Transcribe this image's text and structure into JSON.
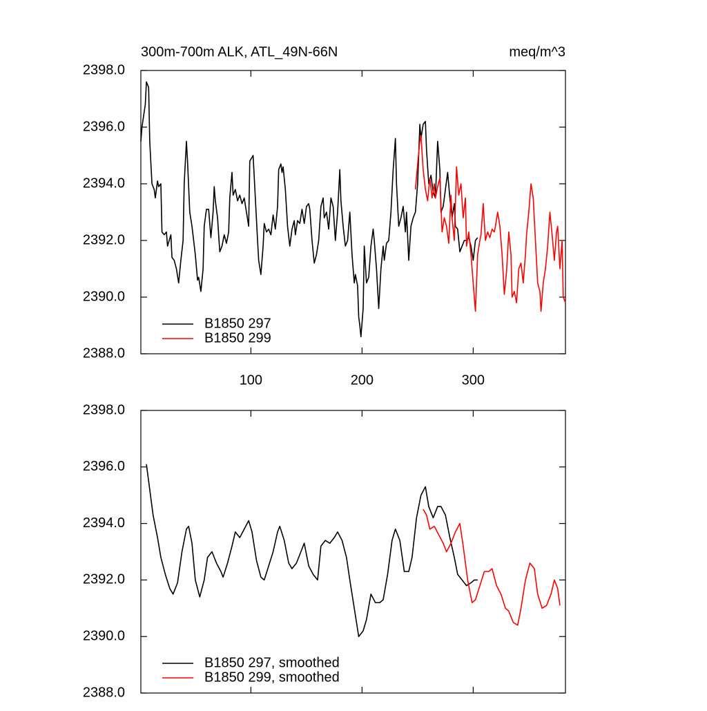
{
  "chart_data": [
    {
      "type": "line",
      "title": "300m-700m ALK, ATL_49N-66N",
      "units": "meq/m^3",
      "xlim": [
        1,
        383
      ],
      "xticks": [
        100,
        200,
        300
      ],
      "show_xtick_labels": true,
      "ylim": [
        2388,
        2398
      ],
      "yticks": [
        {
          "value": 2388,
          "label": "2388.0"
        },
        {
          "value": 2390,
          "label": "2390.0"
        },
        {
          "value": 2392,
          "label": "2392.0"
        },
        {
          "value": 2394,
          "label": "2394.0"
        },
        {
          "value": 2396,
          "label": "2396.0"
        },
        {
          "value": 2398,
          "label": "2398.0"
        }
      ],
      "legend": "lower left",
      "series": [
        {
          "name": "B1850 297",
          "color": "#000000",
          "x": [
            1,
            2,
            5,
            6,
            8,
            9,
            11,
            13,
            14,
            16,
            17,
            19,
            20,
            22,
            24,
            25,
            28,
            29,
            31,
            33,
            35,
            37,
            39,
            40,
            42,
            43,
            45,
            47,
            50,
            52,
            53,
            55,
            57,
            58,
            60,
            62,
            64,
            66,
            67,
            68,
            70,
            72,
            74,
            76,
            78,
            80,
            81,
            83,
            84,
            86,
            88,
            90,
            92,
            94,
            96,
            98,
            99,
            102,
            104,
            106,
            107,
            109,
            111,
            112,
            114,
            116,
            118,
            120,
            122,
            124,
            125,
            127,
            128,
            129,
            131,
            133,
            135,
            137,
            139,
            140,
            142,
            144,
            146,
            148,
            150,
            152,
            153,
            155,
            157,
            159,
            161,
            163,
            165,
            166,
            168,
            170,
            172,
            174,
            176,
            178,
            180,
            181,
            183,
            185,
            187,
            189,
            191,
            193,
            194,
            196,
            197,
            198,
            199,
            201,
            202,
            204,
            206,
            208,
            210,
            211,
            213,
            215,
            217,
            219,
            220,
            222,
            224,
            226,
            228,
            230,
            231,
            233,
            235,
            237,
            239,
            240,
            242,
            244,
            246,
            248,
            250,
            252,
            253,
            255,
            257,
            258,
            260,
            262,
            264,
            266,
            268,
            270,
            271,
            273,
            275,
            277,
            279,
            281,
            283,
            284,
            286,
            288,
            290,
            292,
            294,
            296,
            298,
            300,
            302,
            304
          ],
          "values": [
            2395.5,
            2396.0,
            2396.8,
            2397.6,
            2397.4,
            2395.5,
            2394.0,
            2393.8,
            2393.5,
            2394.1,
            2393.9,
            2394.0,
            2392.3,
            2392.2,
            2392.3,
            2391.8,
            2392.2,
            2391.4,
            2391.3,
            2391.0,
            2390.5,
            2391.3,
            2392.0,
            2394.0,
            2395.5,
            2394.8,
            2393.0,
            2392.5,
            2391.5,
            2390.6,
            2390.7,
            2390.2,
            2391.0,
            2392.5,
            2393.1,
            2393.1,
            2392.1,
            2393.0,
            2393.9,
            2393.4,
            2392.8,
            2391.6,
            2391.8,
            2392.2,
            2391.9,
            2392.3,
            2393.5,
            2394.4,
            2393.6,
            2393.8,
            2393.4,
            2393.6,
            2393.3,
            2393.5,
            2393.0,
            2392.5,
            2394.8,
            2395.0,
            2393.5,
            2392.0,
            2391.3,
            2390.8,
            2391.8,
            2392.6,
            2392.3,
            2392.4,
            2392.2,
            2392.9,
            2392.4,
            2393.2,
            2394.5,
            2394.7,
            2394.4,
            2394.6,
            2393.8,
            2392.5,
            2391.8,
            2392.4,
            2392.7,
            2392.2,
            2392.7,
            2392.6,
            2393.1,
            2392.6,
            2393.2,
            2393.3,
            2393.1,
            2392.0,
            2391.2,
            2391.5,
            2392.0,
            2393.2,
            2393.5,
            2392.8,
            2393.0,
            2392.4,
            2393.5,
            2393.2,
            2392.0,
            2393.0,
            2394.5,
            2393.4,
            2392.5,
            2391.8,
            2392.0,
            2393.0,
            2391.5,
            2390.5,
            2390.8,
            2390.4,
            2389.3,
            2389.0,
            2388.6,
            2389.6,
            2391.8,
            2390.5,
            2390.7,
            2391.8,
            2392.4,
            2392.0,
            2391.0,
            2389.6,
            2391.0,
            2391.8,
            2391.3,
            2391.9,
            2392.0,
            2393.0,
            2394.5,
            2395.6,
            2394.0,
            2392.5,
            2392.8,
            2393.2,
            2392.3,
            2393.0,
            2391.3,
            2392.5,
            2392.8,
            2393.0,
            2394.0,
            2396.1,
            2395.6,
            2396.1,
            2396.2,
            2395.2,
            2394.0,
            2394.3,
            2393.7,
            2393.5,
            2395.5,
            2394.5,
            2393.0,
            2393.2,
            2393.8,
            2394.4,
            2393.5,
            2392.8,
            2393.3,
            2392.5,
            2392.4,
            2391.6,
            2391.8,
            2392.0,
            2392.0,
            2392.1,
            2391.8,
            2391.3,
            2392.0,
            2392.1
          ]
        },
        {
          "name": "B1850 299",
          "color": "#ff0000",
          "x": [
            248,
            250,
            252,
            253,
            255,
            257,
            259,
            261,
            263,
            265,
            266,
            268,
            270,
            272,
            274,
            276,
            278,
            280,
            281,
            283,
            285,
            287,
            289,
            291,
            293,
            294,
            296,
            298,
            300,
            302,
            304,
            306,
            307,
            309,
            311,
            313,
            315,
            317,
            319,
            320,
            322,
            324,
            326,
            328,
            330,
            332,
            334,
            335,
            337,
            339,
            341,
            343,
            345,
            347,
            348,
            350,
            352,
            354,
            356,
            358,
            360,
            361,
            363,
            365,
            367,
            369,
            371,
            373,
            375,
            376,
            378,
            380,
            381,
            383
          ],
          "values": [
            2393.8,
            2394.7,
            2395.5,
            2395.7,
            2394.5,
            2393.8,
            2393.4,
            2394.2,
            2393.5,
            2394.0,
            2393.5,
            2393.9,
            2394.2,
            2392.3,
            2392.8,
            2392.5,
            2391.9,
            2393.6,
            2392.8,
            2392.0,
            2394.6,
            2393.6,
            2394.0,
            2392.8,
            2393.5,
            2391.8,
            2392.3,
            2391.5,
            2390.5,
            2389.5,
            2391.5,
            2392.0,
            2392.2,
            2393.3,
            2392.0,
            2392.3,
            2392.1,
            2392.4,
            2392.3,
            2392.5,
            2393.0,
            2392.5,
            2391.5,
            2390.1,
            2390.9,
            2392.3,
            2391.5,
            2390.0,
            2390.2,
            2389.8,
            2391.0,
            2391.2,
            2390.5,
            2391.5,
            2392.2,
            2393.0,
            2394.0,
            2393.5,
            2392.0,
            2390.5,
            2390.2,
            2389.5,
            2390.5,
            2391.0,
            2391.8,
            2393.0,
            2392.2,
            2391.3,
            2392.3,
            2392.5,
            2391.0,
            2392.0,
            2390.0,
            2389.8
          ]
        }
      ]
    },
    {
      "type": "line",
      "xlim": [
        1,
        383
      ],
      "xticks": [
        100,
        200,
        300
      ],
      "show_xtick_labels": false,
      "ylim": [
        2388,
        2398
      ],
      "yticks": [
        {
          "value": 2388,
          "label": "2388.0"
        },
        {
          "value": 2390,
          "label": "2390.0"
        },
        {
          "value": 2392,
          "label": "2392.0"
        },
        {
          "value": 2394,
          "label": "2394.0"
        },
        {
          "value": 2396,
          "label": "2396.0"
        },
        {
          "value": 2398,
          "label": "2398.0"
        }
      ],
      "legend": "lower left",
      "series": [
        {
          "name": "B1850 297, smoothed",
          "color": "#000000",
          "x": [
            6,
            9,
            12,
            16,
            19,
            23,
            27,
            30,
            34,
            38,
            42,
            44,
            47,
            50,
            54,
            58,
            61,
            65,
            69,
            73,
            75,
            79,
            83,
            86,
            90,
            94,
            98,
            101,
            105,
            109,
            112,
            116,
            120,
            124,
            126,
            130,
            134,
            137,
            141,
            145,
            148,
            152,
            156,
            160,
            163,
            167,
            171,
            175,
            178,
            182,
            186,
            189,
            193,
            197,
            201,
            204,
            208,
            212,
            216,
            219,
            223,
            227,
            230,
            234,
            238,
            242,
            245,
            249,
            253,
            257,
            260,
            264,
            268,
            271,
            275,
            279,
            283,
            286,
            290,
            294,
            298,
            301,
            304
          ],
          "values": [
            2396.1,
            2395.2,
            2394.3,
            2393.5,
            2392.8,
            2392.2,
            2391.7,
            2391.5,
            2391.9,
            2393.0,
            2393.8,
            2393.9,
            2393.3,
            2392.0,
            2391.4,
            2392.0,
            2392.8,
            2393.0,
            2392.6,
            2392.3,
            2392.1,
            2392.6,
            2393.2,
            2393.7,
            2393.5,
            2393.8,
            2394.1,
            2393.7,
            2392.7,
            2392.1,
            2392.0,
            2392.5,
            2393.0,
            2393.7,
            2393.9,
            2393.4,
            2392.6,
            2392.4,
            2392.6,
            2393.0,
            2393.3,
            2392.5,
            2392.2,
            2392.0,
            2393.2,
            2393.4,
            2393.3,
            2393.5,
            2393.7,
            2393.4,
            2392.8,
            2392.0,
            2391.0,
            2390.0,
            2390.2,
            2390.6,
            2391.5,
            2391.2,
            2391.2,
            2391.3,
            2392.2,
            2393.4,
            2393.8,
            2393.4,
            2392.3,
            2392.3,
            2392.8,
            2394.2,
            2395.0,
            2395.3,
            2394.6,
            2394.2,
            2394.6,
            2394.6,
            2394.3,
            2393.5,
            2392.8,
            2392.2,
            2392.0,
            2391.8,
            2391.9,
            2392.0,
            2392.0
          ]
        },
        {
          "name": "B1850 299, smoothed",
          "color": "#ff0000",
          "x": [
            255,
            258,
            261,
            265,
            269,
            273,
            276,
            280,
            284,
            288,
            291,
            295,
            299,
            302,
            306,
            310,
            314,
            317,
            321,
            325,
            329,
            332,
            336,
            340,
            343,
            347,
            351,
            355,
            358,
            362,
            366,
            370,
            373,
            376,
            378
          ],
          "values": [
            2394.5,
            2394.3,
            2393.8,
            2393.9,
            2393.6,
            2393.3,
            2393.0,
            2393.3,
            2393.7,
            2394.0,
            2393.2,
            2392.0,
            2391.2,
            2391.3,
            2391.8,
            2392.3,
            2392.3,
            2392.4,
            2391.8,
            2391.5,
            2391.0,
            2390.9,
            2390.5,
            2390.4,
            2391.0,
            2392.0,
            2392.6,
            2392.4,
            2391.5,
            2391.0,
            2391.1,
            2391.5,
            2392.0,
            2391.7,
            2391.1
          ]
        }
      ]
    }
  ]
}
